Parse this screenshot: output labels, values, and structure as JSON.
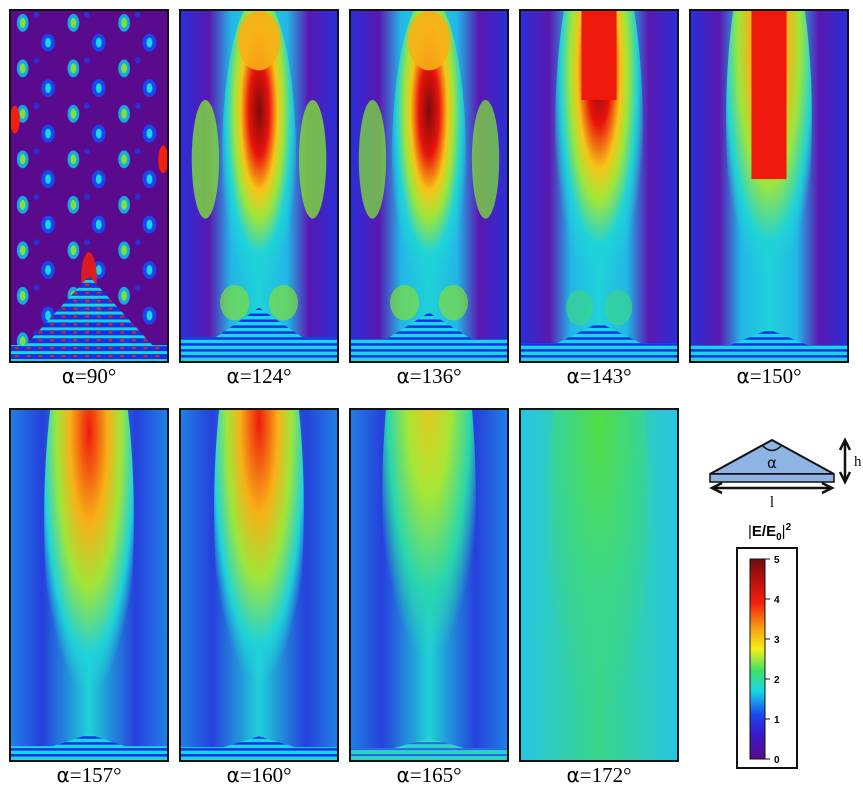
{
  "angle_symbol": "α",
  "panels": [
    {
      "angle": "90°",
      "id": "a90"
    },
    {
      "angle": "124°",
      "id": "a124"
    },
    {
      "angle": "136°",
      "id": "a136"
    },
    {
      "angle": "143°",
      "id": "a143"
    },
    {
      "angle": "150°",
      "id": "a150"
    },
    {
      "angle": "157°",
      "id": "a157"
    },
    {
      "angle": "160°",
      "id": "a160"
    },
    {
      "angle": "165°",
      "id": "a165"
    },
    {
      "angle": "172°",
      "id": "a172"
    }
  ],
  "schematic": {
    "apex_label": "α",
    "base_label": "l",
    "height_label": "h"
  },
  "colorbar": {
    "label_main": "E/E",
    "label_sub": "0",
    "label_sup": "2",
    "ticks": [
      "0",
      "1",
      "2",
      "3",
      "4",
      "5"
    ],
    "min": 0,
    "max": 5
  },
  "colors": {
    "c0": "#5a0a8c",
    "c1": "#1a2ee8",
    "c2": "#15d8e4",
    "c3": "#f6ef17",
    "c4": "#f21f0c",
    "c5": "#6b0d0d",
    "bg_green": "#34d678"
  }
}
